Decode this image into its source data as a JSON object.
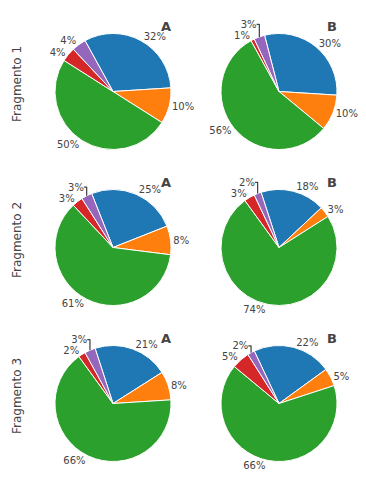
{
  "chart_data": [
    {
      "type": "pie",
      "title": "A",
      "ylabel": "Fragmento 1",
      "values": [
        32,
        10,
        50,
        4,
        4
      ],
      "value_labels": [
        "32%",
        "10%",
        "50%",
        "4%",
        "4%"
      ],
      "data_labels": true
    },
    {
      "type": "pie",
      "title": "B",
      "values": [
        30,
        10,
        56,
        1,
        3
      ],
      "value_labels": [
        "30%",
        "10%",
        "56%",
        "1%",
        "3%"
      ],
      "data_labels": true
    },
    {
      "type": "pie",
      "title": "A",
      "ylabel": "Fragmento 2",
      "values": [
        25,
        8,
        61,
        3,
        3
      ],
      "value_labels": [
        "25%",
        "8%",
        "61%",
        "3%",
        "3%"
      ],
      "data_labels": true
    },
    {
      "type": "pie",
      "title": "B",
      "values": [
        18,
        3,
        74,
        3,
        2
      ],
      "value_labels": [
        "18%",
        "3%",
        "74%",
        "3%",
        "2%"
      ],
      "data_labels": true
    },
    {
      "type": "pie",
      "title": "A",
      "ylabel": "Fragmento 3",
      "values": [
        21,
        8,
        66,
        2,
        3
      ],
      "value_labels": [
        "21%",
        "8%",
        "66%",
        "2%",
        "3%"
      ],
      "data_labels": true
    },
    {
      "type": "pie",
      "title": "B",
      "values": [
        22,
        5,
        66,
        5,
        2
      ],
      "value_labels": [
        "22%",
        "5%",
        "66%",
        "5%",
        "2%"
      ],
      "data_labels": true
    }
  ]
}
